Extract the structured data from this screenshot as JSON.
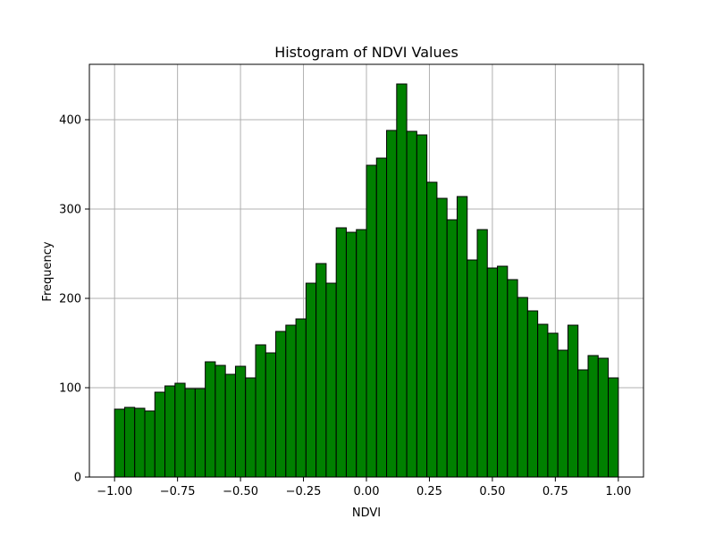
{
  "chart_data": {
    "type": "bar",
    "title": "Histogram of NDVI Values",
    "xlabel": "NDVI",
    "ylabel": "Frequency",
    "xlim": [
      -1.1,
      1.1
    ],
    "ylim": [
      0,
      462
    ],
    "grid": true,
    "bin_edges": [
      -1.0,
      -0.96,
      -0.92,
      -0.88,
      -0.84,
      -0.8,
      -0.76,
      -0.72,
      -0.68,
      -0.64,
      -0.6,
      -0.56,
      -0.52,
      -0.48,
      -0.44,
      -0.4,
      -0.36,
      -0.32,
      -0.28,
      -0.24,
      -0.2,
      -0.16,
      -0.12,
      -0.08,
      -0.04,
      0.0,
      0.04,
      0.08,
      0.12,
      0.16,
      0.2,
      0.24,
      0.28,
      0.32,
      0.36,
      0.4,
      0.44,
      0.48,
      0.52,
      0.56,
      0.6,
      0.64,
      0.68,
      0.72,
      0.76,
      0.8,
      0.84,
      0.88,
      0.92,
      0.96,
      1.0
    ],
    "values": [
      76,
      78,
      77,
      74,
      95,
      102,
      105,
      99,
      99,
      129,
      125,
      115,
      124,
      111,
      148,
      139,
      163,
      170,
      177,
      217,
      239,
      217,
      279,
      274,
      277,
      349,
      357,
      388,
      440,
      387,
      383,
      330,
      312,
      288,
      314,
      243,
      277,
      234,
      236,
      221,
      201,
      186,
      171,
      161,
      142,
      170,
      120,
      136,
      133,
      111
    ],
    "xticks": [
      -1.0,
      -0.75,
      -0.5,
      -0.25,
      0.0,
      0.25,
      0.5,
      0.75,
      1.0
    ],
    "xtick_labels": [
      "−1.00",
      "−0.75",
      "−0.50",
      "−0.25",
      "0.00",
      "0.25",
      "0.50",
      "0.75",
      "1.00"
    ],
    "yticks": [
      0,
      100,
      200,
      300,
      400
    ],
    "ytick_labels": [
      "0",
      "100",
      "200",
      "300",
      "400"
    ],
    "colors": {
      "bar_fill": "#008000",
      "bar_edge": "#000000",
      "grid": "#b0b0b0"
    }
  }
}
